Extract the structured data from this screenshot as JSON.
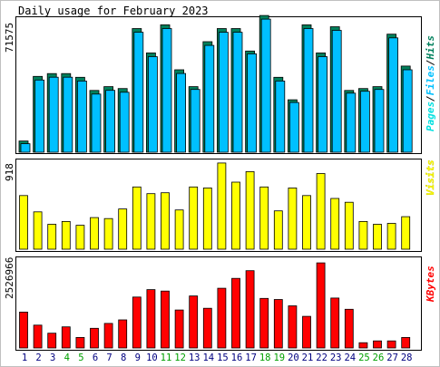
{
  "colors": {
    "hits": "#00805c",
    "files": "#00c0ff",
    "pages": "#00e0e0",
    "visits": "#ffff00",
    "kbytes": "#ff0000",
    "weekend_day": "#00a000",
    "weekday_day": "#000080"
  },
  "chart_data": {
    "title": "Daily usage for February 2023",
    "days": [
      "1",
      "2",
      "3",
      "4",
      "5",
      "6",
      "7",
      "8",
      "9",
      "10",
      "11",
      "12",
      "13",
      "14",
      "15",
      "16",
      "17",
      "18",
      "19",
      "20",
      "21",
      "22",
      "23",
      "24",
      "25",
      "26",
      "27",
      "28"
    ],
    "weekend_days": [
      "4",
      "5",
      "11",
      "12",
      "18",
      "19",
      "25",
      "26"
    ],
    "panels": [
      {
        "type": "bar",
        "ylabel": "71575",
        "ymax": 71575,
        "legend": [
          "Pages",
          "Files",
          "Hits"
        ],
        "series": [
          {
            "name": "Hits",
            "values": [
              6000,
              40500,
              42000,
              42000,
              40000,
              33000,
              35000,
              34000,
              66000,
              53000,
              68000,
              44000,
              35000,
              59000,
              66000,
              66000,
              54000,
              73000,
              40000,
              28000,
              68000,
              53000,
              67000,
              33000,
              34000,
              35000,
              63000,
              46000
            ]
          },
          {
            "name": "Files",
            "values": [
              5500,
              39500,
              41000,
              41000,
              39000,
              32000,
              34000,
              33000,
              65000,
              52000,
              67000,
              43000,
              34500,
              58000,
              65000,
              65000,
              53500,
              72000,
              39000,
              27500,
              67000,
              52000,
              66000,
              32500,
              33500,
              34500,
              62000,
              45000
            ]
          }
        ]
      },
      {
        "type": "bar",
        "ylabel": "918",
        "ymax": 918,
        "legend": [
          "Visits"
        ],
        "series": [
          {
            "name": "Visits",
            "values": [
              560,
              390,
              260,
              290,
              250,
              330,
              320,
              420,
              650,
              580,
              590,
              410,
              650,
              640,
              900,
              700,
              810,
              650,
              400,
              640,
              560,
              790,
              530,
              490,
              290,
              260,
              270,
              340
            ]
          }
        ]
      },
      {
        "type": "bar",
        "ylabel": "2526966",
        "ymax": 2526966,
        "legend": [
          "KBytes"
        ],
        "series": [
          {
            "name": "KBytes",
            "values": [
              1020000,
              650000,
              420000,
              600000,
              300000,
              560000,
              700000,
              800000,
              1450000,
              1660000,
              1620000,
              1080000,
              1480000,
              1130000,
              1700000,
              1980000,
              2200000,
              1410000,
              1380000,
              1200000,
              900000,
              2420000,
              1420000,
              1100000,
              150000,
              200000,
              200000,
              300000
            ]
          }
        ]
      }
    ]
  }
}
